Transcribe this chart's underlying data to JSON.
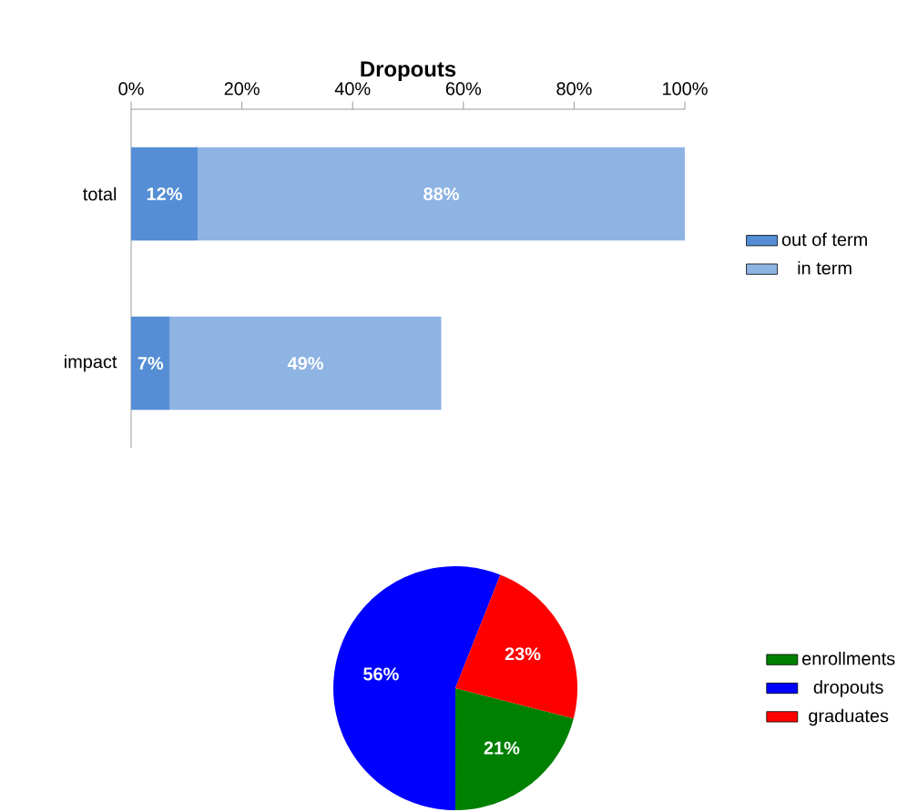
{
  "chart_data": [
    {
      "type": "bar",
      "orientation": "horizontal",
      "stacked": true,
      "title": "Dropouts",
      "categories": [
        "total",
        "impact"
      ],
      "series": [
        {
          "name": "out of term",
          "color": "#558ed5",
          "values": [
            12,
            7
          ],
          "value_labels": [
            "12%",
            "7%"
          ]
        },
        {
          "name": "in term",
          "color": "#8eb4e3",
          "values": [
            88,
            49
          ],
          "value_labels": [
            "88%",
            "49%"
          ]
        }
      ],
      "xlim": [
        0,
        100
      ],
      "xticks": [
        {
          "value": 0,
          "label": "0%"
        },
        {
          "value": 20,
          "label": "20%"
        },
        {
          "value": 40,
          "label": "40%"
        },
        {
          "value": 60,
          "label": "60%"
        },
        {
          "value": 80,
          "label": "80%"
        },
        {
          "value": 100,
          "label": "100%"
        }
      ],
      "grid": false,
      "legend": "right"
    },
    {
      "type": "pie",
      "categories": [
        "enrollments",
        "dropouts",
        "graduates"
      ],
      "values": [
        21,
        56,
        23
      ],
      "colors": [
        "#008000",
        "#0000ff",
        "#ff0000"
      ],
      "value_labels": [
        "21%",
        "56%",
        "23%"
      ],
      "legend": "right"
    }
  ]
}
